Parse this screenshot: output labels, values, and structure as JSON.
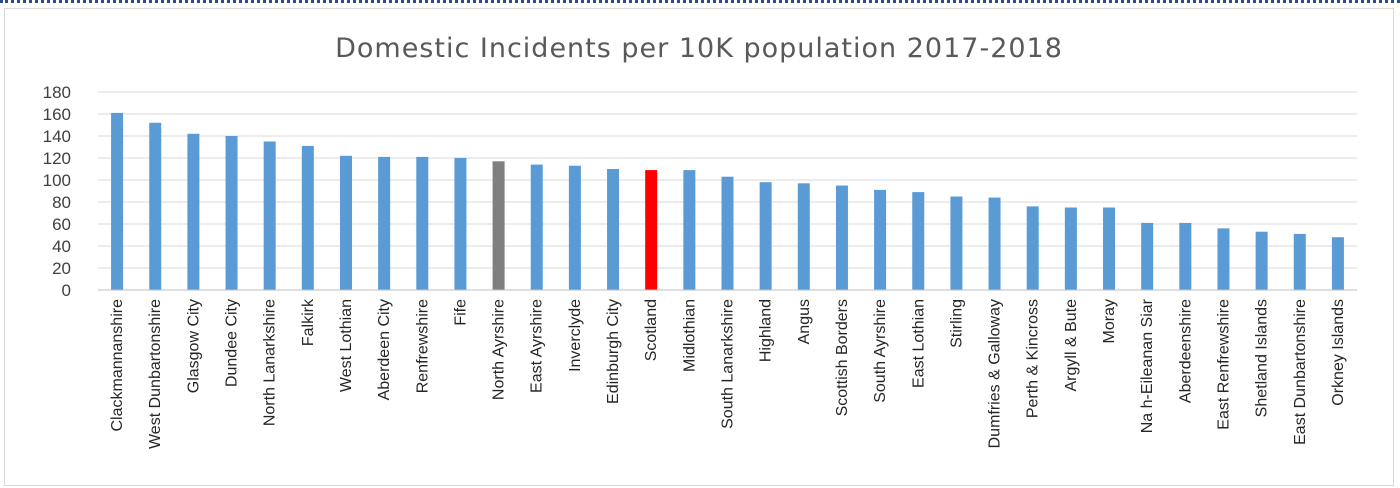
{
  "chart_data": {
    "type": "bar",
    "title": "Domestic Incidents per 10K population 2017-2018",
    "xlabel": "",
    "ylabel": "",
    "ylim": [
      0,
      180
    ],
    "yticks": [
      "0",
      "20",
      "40",
      "60",
      "80",
      "100",
      "120",
      "140",
      "160",
      "180"
    ],
    "grid": true,
    "legend": "none",
    "categories": [
      "Clackmannanshire",
      "West Dunbartonshire",
      "Glasgow City",
      "Dundee City",
      "North Lanarkshire",
      "Falkirk",
      "West Lothian",
      "Aberdeen City",
      "Renfrewshire",
      "Fife",
      "North Ayrshire",
      "East Ayrshire",
      "Inverclyde",
      "Edinburgh City",
      "Scotland",
      "Midlothian",
      "South Lanarkshire",
      "Highland",
      "Angus",
      "Scottish Borders",
      "South Ayrshire",
      "East Lothian",
      "Stirling",
      "Dumfries & Galloway",
      "Perth & Kincross",
      "Argyll & Bute",
      "Moray",
      "Na h-Eileanan Siar",
      "Aberdeenshire",
      "East Renfrewshire",
      "Shetland Islands",
      "East Dunbartonshire",
      "Orkney Islands"
    ],
    "values": [
      161,
      152,
      142,
      140,
      135,
      131,
      122,
      121,
      121,
      120,
      117,
      114,
      113,
      110,
      109,
      109,
      103,
      98,
      97,
      95,
      91,
      89,
      85,
      84,
      76,
      75,
      75,
      61,
      61,
      56,
      53,
      51,
      48
    ],
    "colors": {
      "default": "#5b9bd5",
      "highlight_scotland": "#ff0000",
      "highlight_north_ayrshire": "#7f7f7f",
      "grid": "#d9d9d9",
      "border_top": "#2a4d8f"
    },
    "bar_colors": [
      "default",
      "default",
      "default",
      "default",
      "default",
      "default",
      "default",
      "default",
      "default",
      "default",
      "highlight_north_ayrshire",
      "default",
      "default",
      "default",
      "highlight_scotland",
      "default",
      "default",
      "default",
      "default",
      "default",
      "default",
      "default",
      "default",
      "default",
      "default",
      "default",
      "default",
      "default",
      "default",
      "default",
      "default",
      "default",
      "default"
    ]
  }
}
